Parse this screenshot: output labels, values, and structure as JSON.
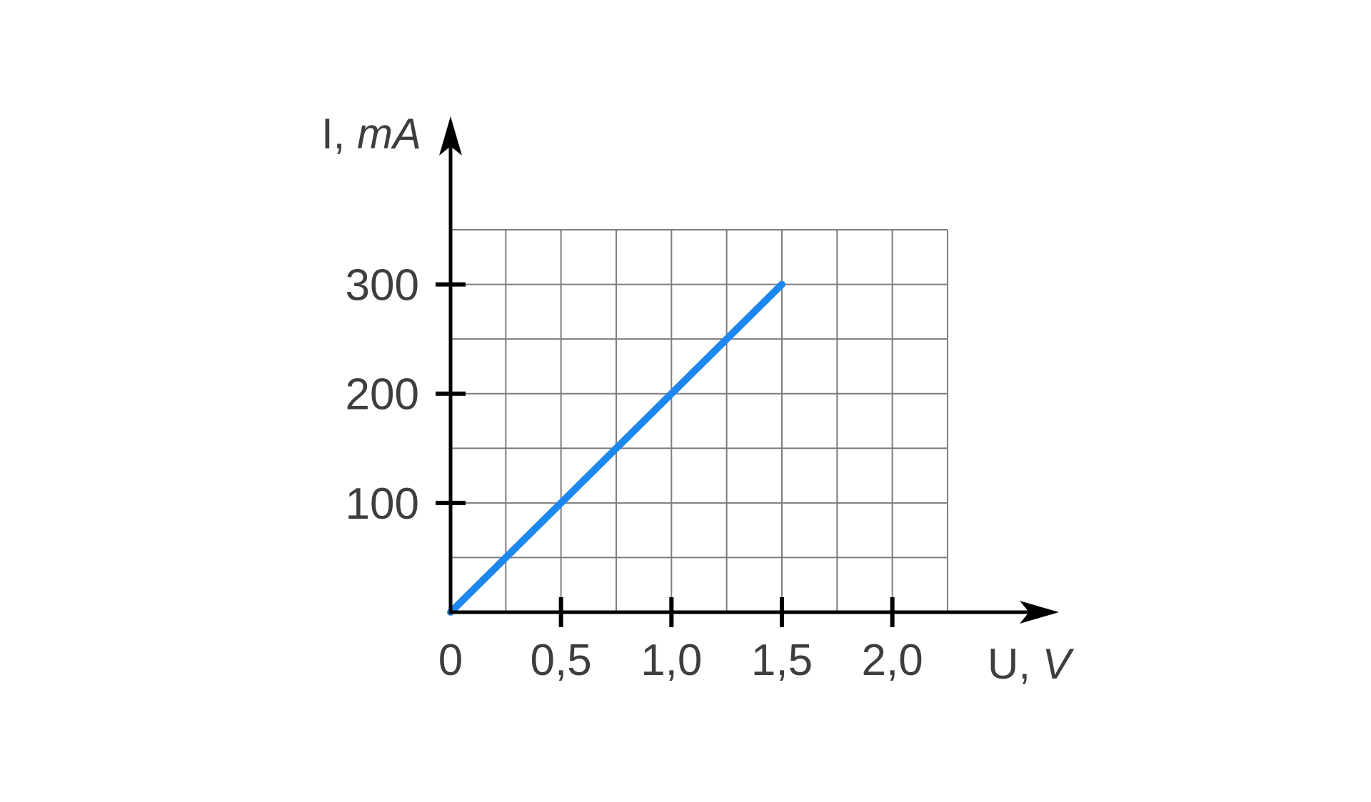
{
  "chart_data": {
    "type": "line",
    "title": "",
    "ylabel": {
      "prefix": "I, ",
      "unit": "mA"
    },
    "xlabel": {
      "prefix": "U, ",
      "unit": "V"
    },
    "x_ticks": [
      {
        "value": 0,
        "label": "0"
      },
      {
        "value": 0.5,
        "label": "0,5"
      },
      {
        "value": 1.0,
        "label": "1,0"
      },
      {
        "value": 1.5,
        "label": "1,5"
      },
      {
        "value": 2.0,
        "label": "2,0"
      }
    ],
    "y_ticks": [
      {
        "value": 100,
        "label": "100"
      },
      {
        "value": 200,
        "label": "200"
      },
      {
        "value": 300,
        "label": "300"
      }
    ],
    "grid": {
      "x_min": 0,
      "x_max": 2.25,
      "x_step": 0.25,
      "y_min": 0,
      "y_max": 350,
      "y_step": 50,
      "visible": true
    },
    "series": [
      {
        "name": "current-vs-voltage-line",
        "points": [
          [
            0,
            0
          ],
          [
            1.5,
            300
          ]
        ],
        "color": "#1d87f0"
      }
    ],
    "axis_color": "#000000",
    "grid_color": "#7d7d7d",
    "text_color": "#3e3e3e",
    "legend": "none"
  }
}
